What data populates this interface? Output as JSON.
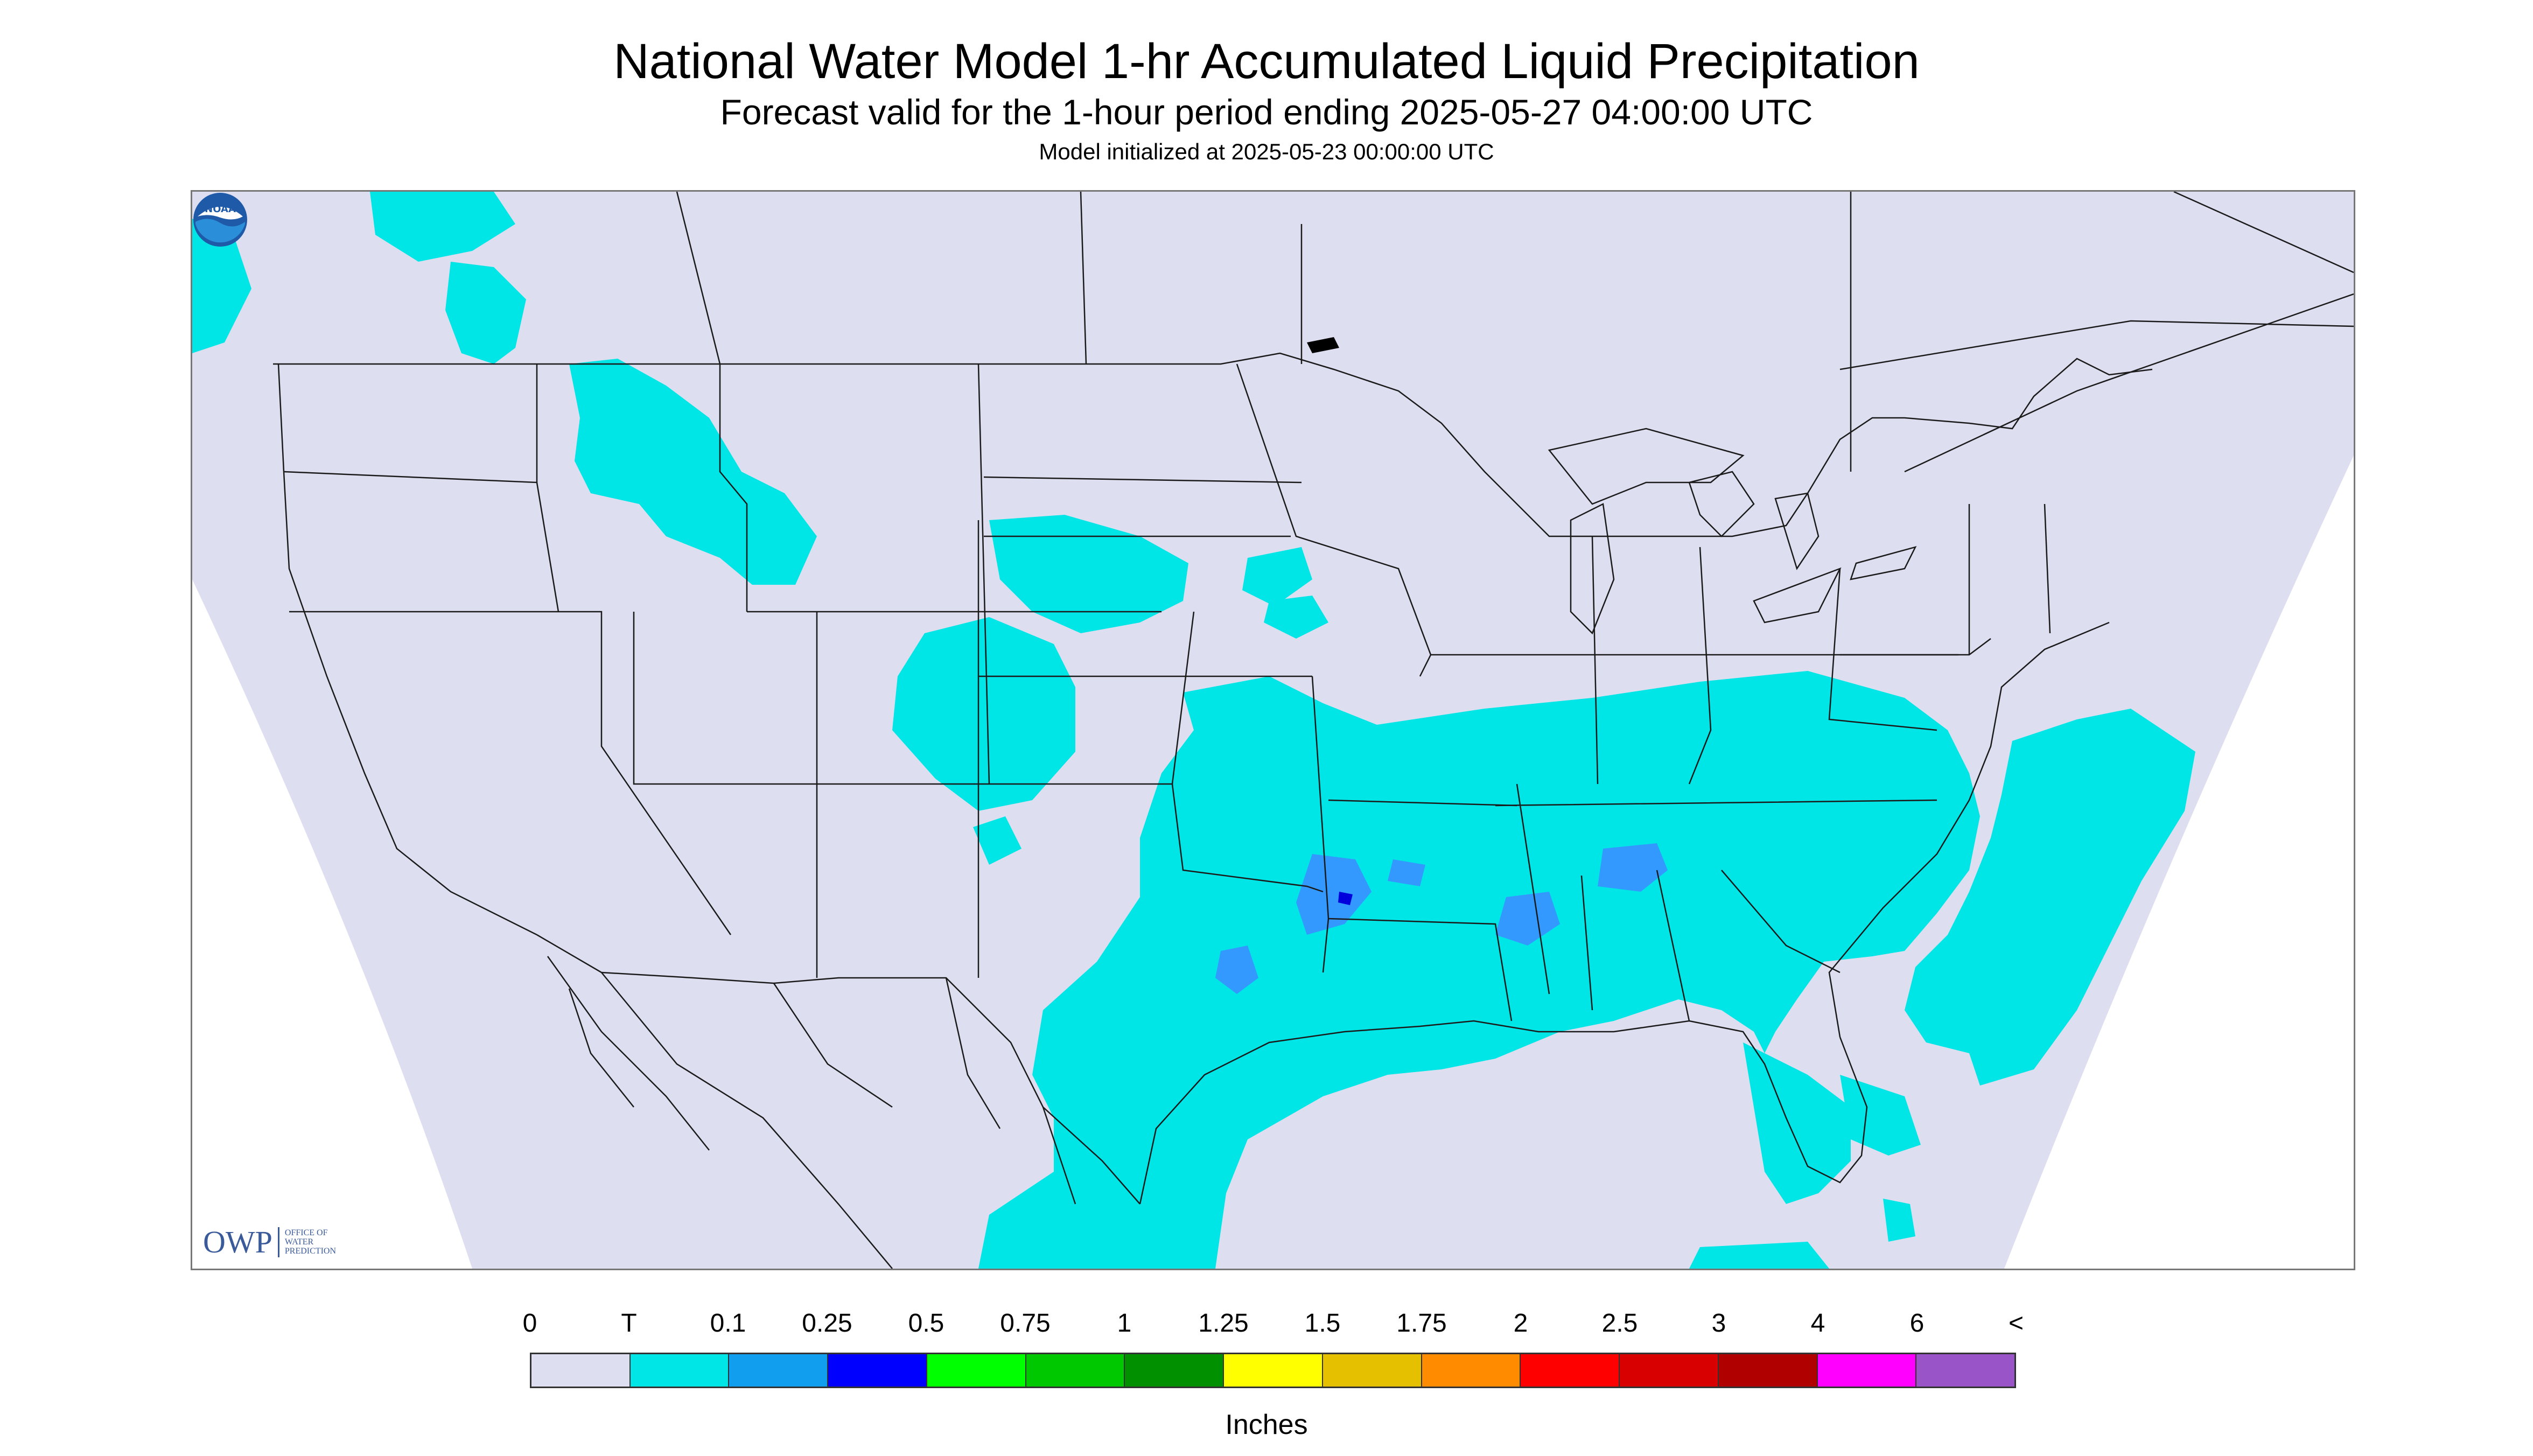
{
  "header": {
    "title": "National Water Model 1-hr Accumulated Liquid Precipitation",
    "subtitle": "Forecast valid for the 1-hour period ending 2025-05-27 04:00:00 UTC",
    "init": "Model initialized at 2025-05-23 00:00:00 UTC"
  },
  "logos": {
    "owp_letters": "OWP",
    "owp_line1": "OFFICE OF",
    "owp_line2": "WATER",
    "owp_line3": "PREDICTION",
    "noaa": "NOAA"
  },
  "colors": {
    "background": "#dddef0",
    "trace": "#00e5e5",
    "light_blue": "#3399ff",
    "blue": "#0000dd"
  },
  "legend": {
    "labels": [
      "0",
      "T",
      "0.1",
      "0.25",
      "0.5",
      "0.75",
      "1",
      "1.25",
      "1.5",
      "1.75",
      "2",
      "2.5",
      "3",
      "4",
      "6",
      "<"
    ],
    "colors": [
      "#dddef0",
      "#00e5e5",
      "#119eee",
      "#0000ff",
      "#00ff00",
      "#00c800",
      "#009000",
      "#ffff00",
      "#e5c000",
      "#ff8c00",
      "#ff0000",
      "#d80000",
      "#b00000",
      "#ff00ff",
      "#9955c8"
    ],
    "units": "Inches"
  }
}
